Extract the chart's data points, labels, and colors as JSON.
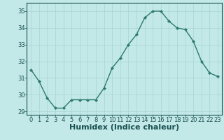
{
  "x": [
    0,
    1,
    2,
    3,
    4,
    5,
    6,
    7,
    8,
    9,
    10,
    11,
    12,
    13,
    14,
    15,
    16,
    17,
    18,
    19,
    20,
    21,
    22,
    23
  ],
  "y": [
    31.5,
    30.8,
    29.8,
    29.2,
    29.2,
    29.7,
    29.7,
    29.7,
    29.7,
    30.4,
    31.6,
    32.2,
    33.0,
    33.6,
    34.6,
    35.0,
    35.0,
    34.4,
    34.0,
    33.9,
    33.2,
    32.0,
    31.3,
    31.1
  ],
  "line_color": "#2d7a6e",
  "marker": "D",
  "marker_size": 2.2,
  "bg_color": "#c2e8e8",
  "grid_color": "#a8d4d4",
  "xlabel": "Humidex (Indice chaleur)",
  "xlabel_fontsize": 8,
  "ylim": [
    28.8,
    35.5
  ],
  "xlim": [
    -0.5,
    23.5
  ],
  "yticks": [
    29,
    30,
    31,
    32,
    33,
    34,
    35
  ],
  "xticks": [
    0,
    1,
    2,
    3,
    4,
    5,
    6,
    7,
    8,
    9,
    10,
    11,
    12,
    13,
    14,
    15,
    16,
    17,
    18,
    19,
    20,
    21,
    22,
    23
  ],
  "tick_fontsize": 6,
  "tick_color": "#1a5050",
  "axis_color": "#1a5050",
  "line_width": 1.0
}
